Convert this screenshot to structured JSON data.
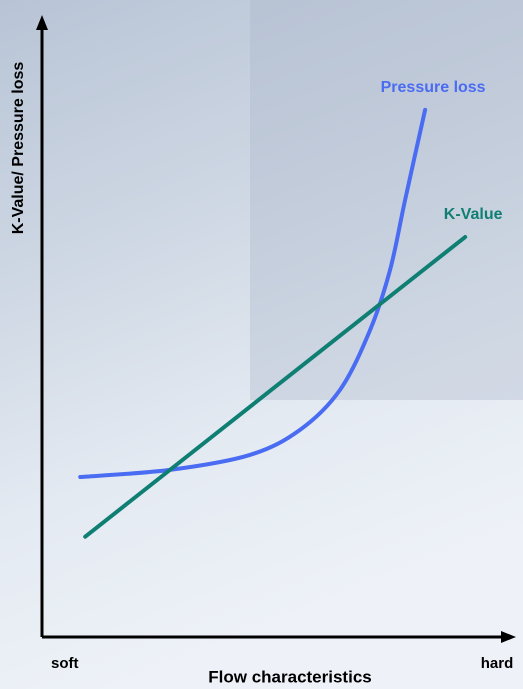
{
  "chart_data": {
    "type": "line",
    "x_label": "Flow characteristics",
    "y_label": "K-Value/ Pressure loss",
    "xlim": [
      0,
      10
    ],
    "ylim": [
      0,
      10
    ],
    "xticks": [
      {
        "value": 0.5,
        "label": "soft"
      },
      {
        "value": 10,
        "label": "hard"
      }
    ],
    "series": [
      {
        "name": "Pressure loss",
        "color": "#4a6cf2",
        "x": [
          0.84,
          2.81,
          4.57,
          5.67,
          6.55,
          7.21,
          7.65,
          7.98,
          8.42
        ],
        "values": [
          2.68,
          2.8,
          3.05,
          3.47,
          4.14,
          5.14,
          6.15,
          7.32,
          8.83
        ]
      },
      {
        "name": "K-Value",
        "color": "#0f7f74",
        "x": [
          0.95,
          9.3
        ],
        "values": [
          1.68,
          6.7
        ]
      }
    ]
  }
}
